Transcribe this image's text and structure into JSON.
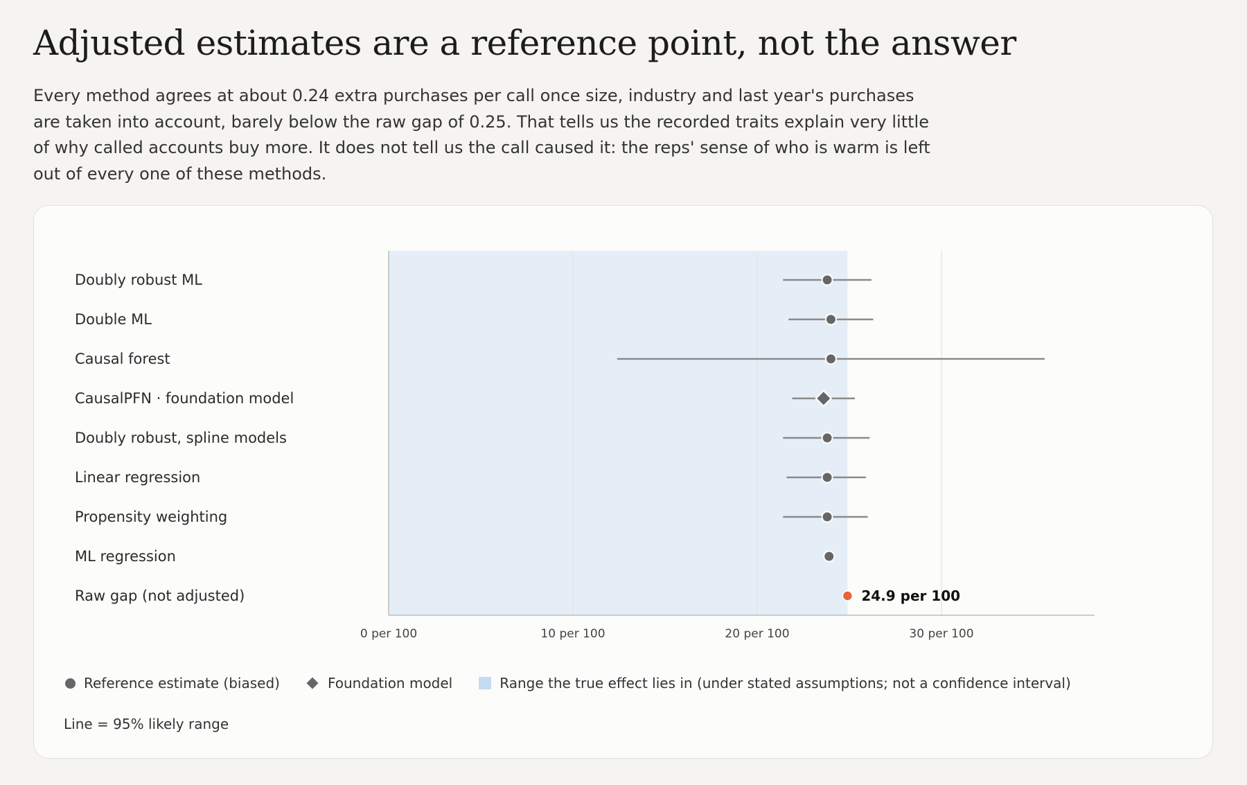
{
  "header": {
    "title": "Adjusted estimates are a reference point, not the answer",
    "subtitle": "Every method agrees at about 0.24 extra purchases per call once size, industry and last year's purchases are taken into account, barely below the raw gap of 0.25. That tells us the recorded traits explain very little of why called accounts buy more. It does not tell us the call caused it: the reps' sense of who is warm is left out of every one of these methods."
  },
  "chart_data": {
    "type": "scatter",
    "subtype": "forest-plot",
    "title": "",
    "xlabel": "",
    "ylabel": "",
    "xlim": [
      0,
      38.3
    ],
    "x_ticks": [
      {
        "value": 0,
        "label": "0 per 100"
      },
      {
        "value": 10,
        "label": "10 per 100"
      },
      {
        "value": 20,
        "label": "20 per 100"
      },
      {
        "value": 30,
        "label": "30 per 100"
      }
    ],
    "shaded_range": [
      0,
      24.9
    ],
    "rows": [
      {
        "label": "Doubly robust ML",
        "estimate": 23.8,
        "low": 21.4,
        "high": 26.2,
        "marker": "circle"
      },
      {
        "label": "Double ML",
        "estimate": 24.0,
        "low": 21.7,
        "high": 26.3,
        "marker": "circle"
      },
      {
        "label": "Causal forest",
        "estimate": 24.0,
        "low": 12.4,
        "high": 35.6,
        "marker": "circle"
      },
      {
        "label": "CausalPFN · foundation model",
        "estimate": 23.6,
        "low": 21.9,
        "high": 25.3,
        "marker": "diamond"
      },
      {
        "label": "Doubly robust, spline models",
        "estimate": 23.8,
        "low": 21.4,
        "high": 26.1,
        "marker": "circle"
      },
      {
        "label": "Linear regression",
        "estimate": 23.8,
        "low": 21.6,
        "high": 25.9,
        "marker": "circle"
      },
      {
        "label": "Propensity weighting",
        "estimate": 23.8,
        "low": 21.4,
        "high": 26.0,
        "marker": "circle"
      },
      {
        "label": "ML regression",
        "estimate": 23.9,
        "low": null,
        "high": null,
        "marker": "circle"
      },
      {
        "label": "Raw gap (not adjusted)",
        "estimate": 24.9,
        "low": null,
        "high": null,
        "marker": "raw",
        "value_label": "24.9 per 100"
      }
    ],
    "colors": {
      "estimate": "#666666",
      "interval": "#8a8a8a",
      "raw": "#e8643a",
      "shaded": "#c6dbf3"
    },
    "legend": {
      "placement": "bottom-left",
      "items": [
        {
          "marker": "circle",
          "label": "Reference estimate (biased)"
        },
        {
          "marker": "diamond",
          "label": "Foundation model"
        },
        {
          "marker": "rect",
          "label": "Range the true effect lies in (under stated assumptions; not a confidence interval)"
        }
      ]
    },
    "note": "Line = 95% likely range"
  }
}
